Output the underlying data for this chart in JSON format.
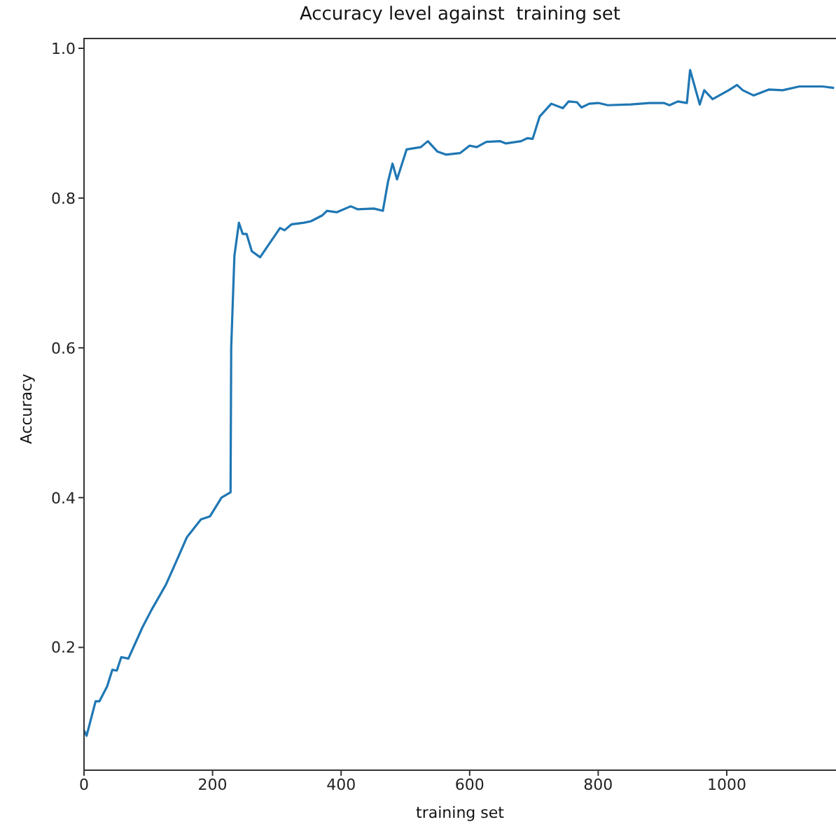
{
  "chart_data": {
    "type": "line",
    "title": "Accuracy level against  training set",
    "xlabel": "training set",
    "ylabel": "Accuracy",
    "xlim": [
      0,
      1170
    ],
    "ylim": [
      0.036,
      1.014
    ],
    "xticks": [
      0,
      200,
      400,
      600,
      800,
      1000
    ],
    "yticks": [
      0.2,
      0.4,
      0.6,
      0.8,
      {
        "value": 1,
        "label": "1.0"
      }
    ],
    "marker": "none",
    "line_style": "solid",
    "series": [
      {
        "color": "#1f77b4",
        "x": [
          0,
          4,
          18,
          24,
          36,
          44,
          51,
          58,
          69,
          91,
          105,
          127,
          138,
          160,
          182,
          196,
          214,
          228,
          229,
          234,
          241,
          247,
          253,
          261,
          274,
          305,
          312,
          323,
          342,
          353,
          371,
          378,
          393,
          415,
          426,
          451,
          465,
          473,
          480,
          487,
          502,
          524,
          535,
          550,
          563,
          585,
          600,
          611,
          626,
          647,
          656,
          680,
          690,
          698,
          709,
          727,
          745,
          754,
          767,
          774,
          786,
          800,
          815,
          851,
          880,
          902,
          911,
          924,
          938,
          943,
          958,
          965,
          978,
          1003,
          1016,
          1025,
          1042,
          1066,
          1087,
          1113,
          1149,
          1167
        ],
        "values": [
          0.089,
          0.082,
          0.128,
          0.128,
          0.148,
          0.17,
          0.169,
          0.187,
          0.185,
          0.227,
          0.25,
          0.283,
          0.304,
          0.347,
          0.371,
          0.375,
          0.4,
          0.407,
          0.6,
          0.723,
          0.767,
          0.752,
          0.752,
          0.729,
          0.721,
          0.76,
          0.757,
          0.765,
          0.767,
          0.769,
          0.777,
          0.783,
          0.781,
          0.789,
          0.785,
          0.786,
          0.783,
          0.822,
          0.846,
          0.825,
          0.865,
          0.868,
          0.876,
          0.862,
          0.858,
          0.86,
          0.87,
          0.868,
          0.875,
          0.876,
          0.873,
          0.876,
          0.88,
          0.879,
          0.909,
          0.926,
          0.92,
          0.929,
          0.928,
          0.921,
          0.926,
          0.927,
          0.924,
          0.925,
          0.927,
          0.927,
          0.924,
          0.929,
          0.927,
          0.971,
          0.925,
          0.944,
          0.932,
          0.944,
          0.951,
          0.944,
          0.937,
          0.945,
          0.944,
          0.949,
          0.949,
          0.947
        ]
      }
    ]
  }
}
